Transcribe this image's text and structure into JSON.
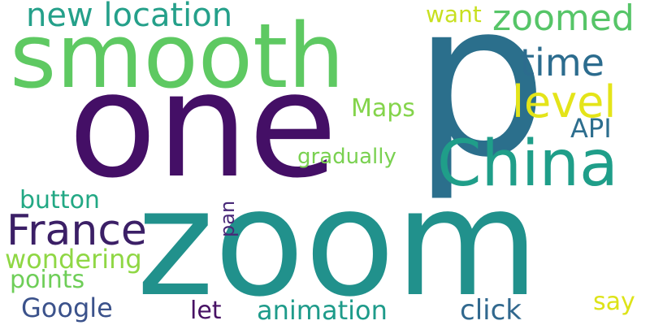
{
  "words": [
    {
      "text": "p",
      "color": "#2b6f8c"
    },
    {
      "text": "zoom",
      "color": "#21918c"
    },
    {
      "text": "one",
      "color": "#440f66"
    },
    {
      "text": "smooth",
      "color": "#5ec962"
    },
    {
      "text": "China",
      "color": "#1f9e89"
    },
    {
      "text": "France",
      "color": "#3b1f66"
    },
    {
      "text": "new location",
      "color": "#25a08a"
    },
    {
      "text": "zoomed",
      "color": "#56c568"
    },
    {
      "text": "time",
      "color": "#2c6c8e"
    },
    {
      "text": "level",
      "color": "#e4e419"
    },
    {
      "text": "Maps",
      "color": "#84d44b"
    },
    {
      "text": "API",
      "color": "#2d6e8e"
    },
    {
      "text": "want",
      "color": "#c8e020"
    },
    {
      "text": "gradually",
      "color": "#7ad151"
    },
    {
      "text": "button",
      "color": "#22a884"
    },
    {
      "text": "pan",
      "color": "#482878"
    },
    {
      "text": "wondering",
      "color": "#8fd744"
    },
    {
      "text": "points",
      "color": "#6ece58"
    },
    {
      "text": "Google",
      "color": "#3b528b"
    },
    {
      "text": "let",
      "color": "#471164"
    },
    {
      "text": "animation",
      "color": "#1e9b8a"
    },
    {
      "text": "click",
      "color": "#31688e"
    },
    {
      "text": "say",
      "color": "#dde318"
    }
  ]
}
